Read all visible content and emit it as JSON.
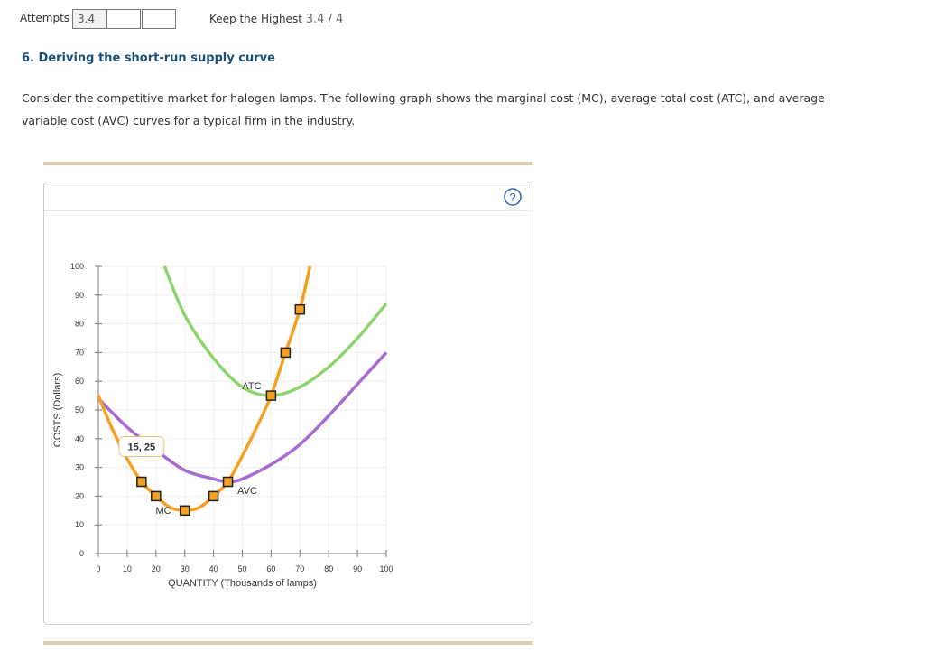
{
  "header": {
    "attempts_label": "Attempts",
    "attempts_value": "3.4",
    "keep_label": "Keep the Highest",
    "keep_value": "3.4 / 4"
  },
  "question": {
    "title": "6. Deriving the short-run supply curve",
    "text": "Consider the competitive market for halogen lamps. The following graph shows the marginal cost (MC), average total cost (ATC), and average variable cost (AVC) curves for a typical firm in the industry."
  },
  "help": "?",
  "chart_data": {
    "type": "line",
    "xlabel": "QUANTITY (Thousands of lamps)",
    "ylabel": "COSTS (Dollars)",
    "xlim": [
      0,
      100
    ],
    "ylim": [
      0,
      100
    ],
    "xticks": [
      0,
      10,
      20,
      30,
      40,
      50,
      60,
      70,
      80,
      90,
      100
    ],
    "yticks": [
      0,
      10,
      20,
      30,
      40,
      50,
      60,
      70,
      80,
      90,
      100
    ],
    "grid": true,
    "annotation": "15, 25",
    "series": [
      {
        "name": "ATC",
        "color": "#8ed46e",
        "x": [
          23,
          30,
          40,
          50,
          60,
          70,
          80,
          90,
          100
        ],
        "values": [
          100,
          83,
          68,
          58,
          55,
          58,
          65,
          75,
          87
        ]
      },
      {
        "name": "AVC",
        "color": "#a86bd1",
        "x": [
          0,
          10,
          20,
          30,
          40,
          45,
          50,
          60,
          70,
          80,
          90,
          100
        ],
        "values": [
          54,
          44,
          36,
          29,
          26,
          25,
          26,
          31,
          38,
          48,
          59,
          70
        ]
      },
      {
        "name": "MC",
        "color": "#f5a020",
        "x": [
          0,
          5,
          10,
          15,
          20,
          25,
          30,
          35,
          40,
          45,
          50,
          55,
          60,
          65,
          70,
          73.5
        ],
        "values": [
          55,
          43,
          33,
          25,
          20,
          16,
          15,
          16,
          20,
          25,
          34,
          44,
          55,
          70,
          85,
          100
        ],
        "marker_x": [
          15,
          20,
          30,
          40,
          45,
          60,
          65,
          70
        ],
        "marker_values": [
          25,
          20,
          15,
          20,
          25,
          55,
          70,
          85
        ]
      }
    ]
  }
}
